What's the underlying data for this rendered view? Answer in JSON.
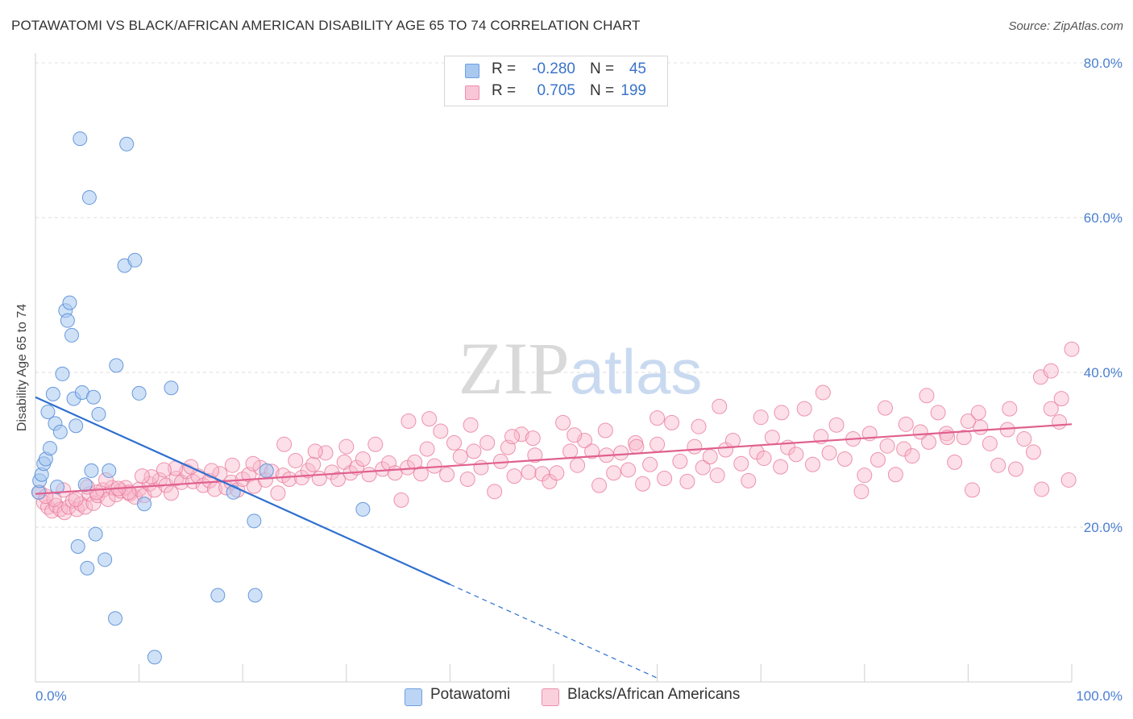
{
  "title": "POTAWATOMI VS BLACK/AFRICAN AMERICAN DISABILITY AGE 65 TO 74 CORRELATION CHART",
  "source": "Source: ZipAtlas.com",
  "watermark": "ZIPatlas",
  "legend": {
    "r_label": "R =",
    "n_label": "N =",
    "rows": [
      {
        "r": "-0.280",
        "n": "45",
        "color": "#a8c8f0"
      },
      {
        "r": "0.705",
        "n": "199",
        "color": "#f8b8cc"
      }
    ]
  },
  "bottom_legend": [
    {
      "label": "Potawatomi",
      "color": "#a8c8f0"
    },
    {
      "label": "Blacks/African Americans",
      "color": "#f8b8cc"
    }
  ],
  "chart_data": {
    "type": "scatter",
    "ylabel": "Disability Age 65 to 74",
    "xlabel": "",
    "xlim": [
      0,
      100
    ],
    "ylim": [
      0,
      80
    ],
    "x_tick_labels": [
      "0.0%",
      "100.0%"
    ],
    "y_tick_labels": [
      {
        "value": 80,
        "label": "80.0%"
      },
      {
        "value": 60,
        "label": "60.0%"
      },
      {
        "value": 40,
        "label": "40.0%"
      },
      {
        "value": 20,
        "label": "20.0%"
      }
    ],
    "grid": true,
    "series": [
      {
        "name": "Potawatomi",
        "color": "#a8c8f0",
        "stroke": "#5a8fd8",
        "trend_color": "#2e6fcf",
        "trend": {
          "x0": 0,
          "y0": 36.8,
          "x1": 40,
          "y1": 12.6,
          "dash_to_x": 60,
          "dash_to_y": 0.5
        },
        "points": [
          [
            0.3,
            24.5
          ],
          [
            0.4,
            26.0
          ],
          [
            0.6,
            26.8
          ],
          [
            0.8,
            28.2
          ],
          [
            1.0,
            28.8
          ],
          [
            1.2,
            34.9
          ],
          [
            1.4,
            30.2
          ],
          [
            1.7,
            37.2
          ],
          [
            1.9,
            33.4
          ],
          [
            2.1,
            25.2
          ],
          [
            2.4,
            32.3
          ],
          [
            2.6,
            39.8
          ],
          [
            2.9,
            48.0
          ],
          [
            3.1,
            46.7
          ],
          [
            3.3,
            49.0
          ],
          [
            3.5,
            44.8
          ],
          [
            3.7,
            36.6
          ],
          [
            3.9,
            33.1
          ],
          [
            4.1,
            17.5
          ],
          [
            4.3,
            70.2
          ],
          [
            4.5,
            37.4
          ],
          [
            4.8,
            25.5
          ],
          [
            5.0,
            14.7
          ],
          [
            5.2,
            62.6
          ],
          [
            5.4,
            27.3
          ],
          [
            5.6,
            36.8
          ],
          [
            5.8,
            19.1
          ],
          [
            6.1,
            34.6
          ],
          [
            6.7,
            15.8
          ],
          [
            7.1,
            27.3
          ],
          [
            7.7,
            8.2
          ],
          [
            7.8,
            40.9
          ],
          [
            8.6,
            53.8
          ],
          [
            8.8,
            69.5
          ],
          [
            9.6,
            54.5
          ],
          [
            10.0,
            37.3
          ],
          [
            10.5,
            23.0
          ],
          [
            11.5,
            3.2
          ],
          [
            13.1,
            38.0
          ],
          [
            17.6,
            11.2
          ],
          [
            19.1,
            24.5
          ],
          [
            21.1,
            20.8
          ],
          [
            21.2,
            11.2
          ],
          [
            22.3,
            27.3
          ],
          [
            31.6,
            22.3
          ]
        ]
      },
      {
        "name": "Blacks/African Americans",
        "color": "#f8b8cc",
        "stroke": "#e87a9c",
        "trend_color": "#e0608e",
        "trend": {
          "x0": 0,
          "y0": 24.3,
          "x1": 100,
          "y1": 33.3
        },
        "points": [
          [
            0.4,
            24.5
          ],
          [
            0.8,
            23.2
          ],
          [
            1.2,
            22.6
          ],
          [
            1.6,
            22.1
          ],
          [
            2.0,
            22.8
          ],
          [
            2.4,
            22.3
          ],
          [
            2.8,
            21.9
          ],
          [
            3.2,
            22.6
          ],
          [
            3.6,
            23.4
          ],
          [
            4.0,
            22.3
          ],
          [
            4.4,
            23.0
          ],
          [
            4.8,
            22.6
          ],
          [
            5.2,
            24.3
          ],
          [
            5.6,
            23.1
          ],
          [
            6.0,
            24.1
          ],
          [
            6.5,
            24.8
          ],
          [
            7.0,
            23.6
          ],
          [
            7.4,
            25.1
          ],
          [
            7.8,
            24.2
          ],
          [
            8.2,
            24.7
          ],
          [
            8.7,
            25.1
          ],
          [
            9.1,
            24.3
          ],
          [
            9.6,
            23.9
          ],
          [
            10.0,
            24.9
          ],
          [
            10.5,
            24.1
          ],
          [
            11.0,
            25.6
          ],
          [
            11.5,
            24.8
          ],
          [
            12.0,
            26.1
          ],
          [
            12.6,
            25.4
          ],
          [
            13.1,
            24.4
          ],
          [
            13.6,
            26.3
          ],
          [
            14.1,
            25.8
          ],
          [
            14.6,
            27.2
          ],
          [
            15.2,
            25.9
          ],
          [
            15.7,
            26.6
          ],
          [
            16.2,
            25.4
          ],
          [
            16.8,
            26.0
          ],
          [
            17.3,
            24.9
          ],
          [
            17.8,
            26.9
          ],
          [
            18.4,
            25.1
          ],
          [
            18.9,
            25.8
          ],
          [
            19.5,
            24.8
          ],
          [
            20.0,
            26.2
          ],
          [
            20.6,
            26.8
          ],
          [
            21.1,
            25.3
          ],
          [
            21.7,
            27.7
          ],
          [
            22.2,
            26.1
          ],
          [
            22.8,
            27.2
          ],
          [
            23.4,
            24.4
          ],
          [
            23.9,
            26.7
          ],
          [
            24.5,
            26.2
          ],
          [
            25.1,
            28.6
          ],
          [
            25.7,
            26.4
          ],
          [
            26.3,
            27.3
          ],
          [
            26.8,
            28.1
          ],
          [
            27.4,
            26.3
          ],
          [
            28.0,
            29.6
          ],
          [
            28.6,
            27.1
          ],
          [
            29.2,
            26.2
          ],
          [
            29.8,
            28.4
          ],
          [
            30.4,
            27.0
          ],
          [
            31.0,
            27.7
          ],
          [
            31.6,
            28.8
          ],
          [
            32.2,
            26.8
          ],
          [
            32.8,
            30.7
          ],
          [
            33.5,
            27.5
          ],
          [
            34.1,
            28.3
          ],
          [
            34.7,
            27.0
          ],
          [
            35.3,
            23.5
          ],
          [
            35.9,
            27.7
          ],
          [
            36.6,
            28.4
          ],
          [
            37.2,
            26.9
          ],
          [
            37.8,
            30.1
          ],
          [
            38.5,
            27.9
          ],
          [
            39.1,
            32.4
          ],
          [
            39.7,
            26.8
          ],
          [
            40.4,
            30.9
          ],
          [
            41.0,
            29.1
          ],
          [
            41.7,
            26.2
          ],
          [
            42.3,
            29.8
          ],
          [
            43.0,
            27.7
          ],
          [
            43.6,
            30.9
          ],
          [
            44.3,
            24.6
          ],
          [
            44.9,
            28.5
          ],
          [
            45.6,
            30.3
          ],
          [
            46.2,
            26.6
          ],
          [
            46.9,
            32.0
          ],
          [
            47.6,
            27.1
          ],
          [
            48.2,
            29.3
          ],
          [
            48.9,
            26.9
          ],
          [
            49.6,
            25.9
          ],
          [
            50.3,
            27.0
          ],
          [
            50.9,
            33.5
          ],
          [
            51.6,
            29.8
          ],
          [
            52.3,
            28.0
          ],
          [
            53.0,
            31.2
          ],
          [
            53.7,
            29.8
          ],
          [
            54.4,
            25.4
          ],
          [
            55.1,
            29.3
          ],
          [
            55.8,
            27.0
          ],
          [
            56.5,
            29.6
          ],
          [
            57.2,
            27.4
          ],
          [
            57.9,
            30.9
          ],
          [
            58.6,
            25.6
          ],
          [
            59.3,
            28.1
          ],
          [
            60.0,
            30.7
          ],
          [
            60.7,
            26.3
          ],
          [
            61.4,
            33.5
          ],
          [
            62.2,
            28.5
          ],
          [
            62.9,
            25.9
          ],
          [
            63.6,
            30.4
          ],
          [
            64.4,
            27.7
          ],
          [
            65.1,
            29.1
          ],
          [
            65.8,
            26.7
          ],
          [
            66.6,
            30.0
          ],
          [
            67.3,
            31.2
          ],
          [
            68.1,
            28.2
          ],
          [
            68.8,
            26.0
          ],
          [
            69.6,
            29.7
          ],
          [
            70.3,
            28.9
          ],
          [
            71.1,
            31.6
          ],
          [
            71.9,
            27.8
          ],
          [
            72.6,
            30.3
          ],
          [
            73.4,
            29.4
          ],
          [
            74.2,
            35.3
          ],
          [
            75.0,
            28.1
          ],
          [
            75.8,
            31.7
          ],
          [
            76.6,
            29.6
          ],
          [
            77.3,
            33.2
          ],
          [
            78.1,
            28.8
          ],
          [
            78.9,
            31.4
          ],
          [
            79.7,
            24.6
          ],
          [
            80.5,
            32.1
          ],
          [
            81.3,
            28.7
          ],
          [
            82.2,
            30.5
          ],
          [
            83.0,
            26.8
          ],
          [
            83.8,
            30.1
          ],
          [
            84.6,
            29.2
          ],
          [
            85.4,
            32.3
          ],
          [
            86.2,
            31.0
          ],
          [
            87.1,
            34.8
          ],
          [
            87.9,
            32.1
          ],
          [
            88.7,
            28.4
          ],
          [
            89.6,
            31.6
          ],
          [
            90.4,
            24.8
          ],
          [
            91.2,
            32.9
          ],
          [
            92.1,
            30.8
          ],
          [
            92.9,
            28.0
          ],
          [
            93.8,
            32.6
          ],
          [
            94.6,
            27.5
          ],
          [
            95.4,
            31.4
          ],
          [
            96.3,
            29.7
          ],
          [
            97.1,
            24.9
          ],
          [
            98.0,
            35.3
          ],
          [
            98.8,
            33.6
          ],
          [
            99.7,
            26.1
          ],
          [
            38.0,
            34.0
          ],
          [
            48.0,
            31.5
          ],
          [
            55.0,
            32.5
          ],
          [
            60.0,
            34.1
          ],
          [
            66.0,
            35.6
          ],
          [
            72.0,
            34.8
          ],
          [
            76.0,
            37.4
          ],
          [
            82.0,
            35.4
          ],
          [
            86.0,
            37.0
          ],
          [
            88.0,
            31.6
          ],
          [
            90.0,
            33.7
          ],
          [
            94.0,
            35.3
          ],
          [
            97.0,
            39.4
          ],
          [
            98.0,
            40.2
          ],
          [
            99.0,
            36.6
          ],
          [
            100.0,
            43.0
          ],
          [
            91.0,
            34.8
          ],
          [
            84.0,
            33.3
          ],
          [
            80.0,
            26.7
          ],
          [
            70.0,
            34.2
          ],
          [
            64.0,
            33.0
          ],
          [
            58.0,
            30.4
          ],
          [
            52.0,
            31.9
          ],
          [
            46.0,
            31.7
          ],
          [
            42.0,
            33.2
          ],
          [
            36.0,
            33.7
          ],
          [
            30.0,
            30.4
          ],
          [
            27.0,
            29.8
          ],
          [
            24.0,
            30.7
          ],
          [
            21.0,
            28.2
          ],
          [
            19.0,
            28.0
          ],
          [
            17.0,
            27.3
          ],
          [
            15.0,
            27.8
          ],
          [
            13.5,
            27.6
          ],
          [
            12.4,
            27.4
          ],
          [
            11.2,
            26.5
          ],
          [
            10.3,
            26.6
          ],
          [
            9.0,
            24.5
          ],
          [
            8.0,
            25.0
          ],
          [
            6.8,
            26.1
          ],
          [
            5.9,
            24.5
          ],
          [
            5.0,
            25.2
          ],
          [
            3.9,
            23.6
          ],
          [
            2.7,
            24.8
          ],
          [
            1.8,
            23.6
          ],
          [
            1.0,
            24.0
          ]
        ]
      }
    ]
  }
}
